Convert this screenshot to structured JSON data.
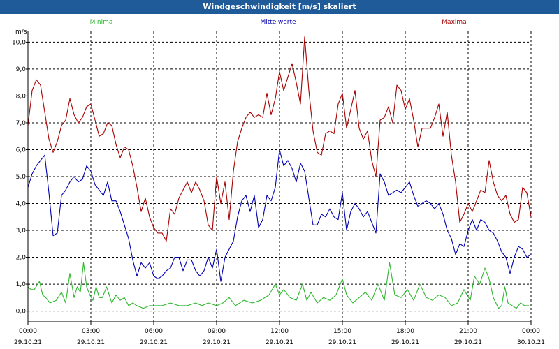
{
  "window": {
    "title": "Windgeschwindigkeit [m/s] skaliert"
  },
  "colors": {
    "minima": "#2db82d",
    "mittel": "#0000b0",
    "maxima": "#a80000",
    "titlebar": "#1f5a99"
  },
  "chart_data": {
    "type": "line",
    "ylabel": "m/s",
    "ylim": [
      -0.4,
      10.4
    ],
    "yticks": [
      "0,0",
      "1,0",
      "2,0",
      "3,0",
      "4,0",
      "5,0",
      "6,0",
      "7,0",
      "8,0",
      "9,0",
      "10,0"
    ],
    "ytick_values": [
      0,
      1,
      2,
      3,
      4,
      5,
      6,
      7,
      8,
      9,
      10
    ],
    "x_hours_range": [
      0,
      24
    ],
    "xticks": [
      {
        "time": "00:00",
        "date": "29.10.21"
      },
      {
        "time": "03:00",
        "date": "29.10.21"
      },
      {
        "time": "06:00",
        "date": "29.10.21"
      },
      {
        "time": "09:00",
        "date": "29.10.21"
      },
      {
        "time": "12:00",
        "date": "29.10.21"
      },
      {
        "time": "15:00",
        "date": "29.10.21"
      },
      {
        "time": "18:00",
        "date": "29.10.21"
      },
      {
        "time": "21:00",
        "date": "29.10.21"
      },
      {
        "time": "00:00",
        "date": "30.10.21"
      }
    ],
    "xtick_hours": [
      0,
      3,
      6,
      9,
      12,
      15,
      18,
      21,
      24
    ],
    "grid": true,
    "series": [
      {
        "name": "Minima",
        "key": "minima",
        "x": [
          0,
          0.15,
          0.3,
          0.55,
          0.7,
          0.85,
          1.05,
          1.35,
          1.6,
          1.8,
          2.0,
          2.2,
          2.35,
          2.5,
          2.65,
          2.8,
          2.95,
          3.1,
          3.25,
          3.4,
          3.55,
          3.75,
          4.0,
          4.2,
          4.4,
          4.6,
          4.8,
          5.0,
          5.2,
          5.5,
          5.8,
          6.1,
          6.4,
          6.8,
          7.2,
          7.6,
          8.0,
          8.3,
          8.6,
          9.0,
          9.3,
          9.6,
          9.9,
          10.3,
          10.7,
          11.1,
          11.5,
          11.8,
          12.0,
          12.2,
          12.5,
          12.8,
          13.1,
          13.3,
          13.5,
          13.8,
          14.1,
          14.4,
          14.7,
          15.0,
          15.2,
          15.5,
          15.8,
          16.1,
          16.4,
          16.7,
          17.0,
          17.25,
          17.5,
          17.8,
          18.1,
          18.4,
          18.7,
          19.0,
          19.3,
          19.6,
          19.9,
          20.2,
          20.5,
          20.8,
          21.1,
          21.3,
          21.55,
          21.8,
          22.0,
          22.2,
          22.45,
          22.6,
          22.75,
          22.9,
          23.1,
          23.3,
          23.5,
          23.7,
          23.9
        ],
        "y": [
          0.9,
          0.8,
          0.8,
          1.1,
          0.6,
          0.5,
          0.3,
          0.4,
          0.7,
          0.3,
          1.4,
          0.5,
          0.9,
          0.7,
          1.8,
          0.9,
          0.6,
          0.4,
          0.9,
          0.5,
          0.5,
          0.9,
          0.3,
          0.6,
          0.4,
          0.5,
          0.2,
          0.3,
          0.2,
          0.1,
          0.2,
          0.2,
          0.2,
          0.3,
          0.2,
          0.2,
          0.3,
          0.2,
          0.3,
          0.2,
          0.3,
          0.5,
          0.2,
          0.4,
          0.3,
          0.4,
          0.6,
          1.0,
          0.6,
          0.8,
          0.5,
          0.4,
          1.0,
          0.4,
          0.7,
          0.3,
          0.5,
          0.4,
          0.6,
          1.2,
          0.6,
          0.3,
          0.5,
          0.7,
          0.4,
          1.0,
          0.4,
          1.8,
          0.6,
          0.5,
          0.8,
          0.4,
          1.0,
          0.5,
          0.4,
          0.6,
          0.5,
          0.2,
          0.3,
          0.8,
          0.4,
          1.3,
          1.0,
          1.6,
          1.2,
          0.5,
          0.1,
          0.2,
          0.9,
          0.3,
          0.2,
          0.1,
          0.3,
          0.2,
          0.2
        ]
      },
      {
        "name": "Mittelwerte",
        "key": "mittel",
        "x": [
          0,
          0.2,
          0.4,
          0.6,
          0.8,
          1.0,
          1.2,
          1.4,
          1.6,
          1.8,
          2.0,
          2.2,
          2.4,
          2.6,
          2.8,
          3.0,
          3.2,
          3.4,
          3.6,
          3.8,
          4.0,
          4.2,
          4.4,
          4.6,
          4.8,
          5.0,
          5.2,
          5.4,
          5.6,
          5.8,
          6.0,
          6.2,
          6.4,
          6.6,
          6.8,
          7.0,
          7.2,
          7.4,
          7.6,
          7.8,
          8.0,
          8.2,
          8.4,
          8.6,
          8.8,
          9.0,
          9.2,
          9.4,
          9.6,
          9.8,
          10.0,
          10.2,
          10.4,
          10.6,
          10.8,
          11.0,
          11.2,
          11.4,
          11.6,
          11.8,
          12.0,
          12.2,
          12.4,
          12.6,
          12.8,
          13.0,
          13.2,
          13.4,
          13.6,
          13.8,
          14.0,
          14.2,
          14.4,
          14.6,
          14.8,
          15.0,
          15.2,
          15.4,
          15.6,
          15.8,
          16.0,
          16.2,
          16.4,
          16.6,
          16.8,
          17.0,
          17.2,
          17.4,
          17.6,
          17.8,
          18.0,
          18.2,
          18.4,
          18.6,
          18.8,
          19.0,
          19.2,
          19.4,
          19.6,
          19.8,
          20.0,
          20.2,
          20.4,
          20.6,
          20.8,
          21.0,
          21.2,
          21.4,
          21.6,
          21.8,
          22.0,
          22.2,
          22.4,
          22.6,
          22.8,
          23.0,
          23.2,
          23.4,
          23.6,
          23.8,
          24.0
        ],
        "y": [
          4.6,
          5.1,
          5.4,
          5.6,
          5.8,
          4.4,
          2.8,
          2.9,
          4.3,
          4.5,
          4.8,
          5.0,
          4.8,
          4.9,
          5.4,
          5.2,
          4.7,
          4.5,
          4.3,
          4.8,
          4.1,
          4.1,
          3.7,
          3.2,
          2.7,
          1.9,
          1.3,
          1.8,
          1.6,
          1.8,
          1.3,
          1.2,
          1.3,
          1.5,
          1.6,
          2.0,
          2.0,
          1.5,
          1.9,
          1.9,
          1.5,
          1.3,
          1.5,
          2.0,
          1.6,
          2.3,
          1.1,
          2.0,
          2.3,
          2.6,
          3.5,
          4.1,
          4.3,
          3.7,
          4.3,
          3.1,
          3.4,
          4.3,
          4.1,
          4.6,
          6.0,
          5.4,
          5.6,
          5.3,
          4.8,
          5.5,
          5.2,
          4.2,
          3.2,
          3.2,
          3.6,
          3.5,
          3.8,
          3.5,
          3.4,
          4.4,
          3.0,
          3.7,
          4.0,
          3.8,
          3.5,
          3.7,
          3.3,
          2.9,
          5.1,
          4.8,
          4.3,
          4.4,
          4.5,
          4.4,
          4.6,
          4.8,
          4.3,
          3.9,
          4.0,
          4.1,
          4.0,
          3.8,
          4.0,
          3.6,
          3.0,
          2.7,
          2.1,
          2.5,
          2.4,
          3.0,
          3.4,
          3.0,
          3.4,
          3.3,
          3.0,
          2.9,
          2.6,
          2.2,
          2.0,
          1.4,
          2.0,
          2.4,
          2.3,
          2.0,
          2.1
        ]
      },
      {
        "name": "Maxima",
        "key": "maxima",
        "x": [
          0,
          0.2,
          0.4,
          0.6,
          0.8,
          1.0,
          1.2,
          1.4,
          1.6,
          1.8,
          2.0,
          2.2,
          2.4,
          2.6,
          2.8,
          3.0,
          3.2,
          3.4,
          3.6,
          3.8,
          4.0,
          4.2,
          4.4,
          4.6,
          4.8,
          5.0,
          5.2,
          5.4,
          5.6,
          5.8,
          6.0,
          6.2,
          6.4,
          6.6,
          6.8,
          7.0,
          7.2,
          7.4,
          7.6,
          7.8,
          8.0,
          8.2,
          8.4,
          8.6,
          8.8,
          9.0,
          9.2,
          9.4,
          9.6,
          9.8,
          10.0,
          10.2,
          10.4,
          10.6,
          10.8,
          11.0,
          11.2,
          11.4,
          11.6,
          11.8,
          12.0,
          12.2,
          12.4,
          12.6,
          12.8,
          13.0,
          13.2,
          13.4,
          13.6,
          13.8,
          14.0,
          14.2,
          14.4,
          14.6,
          14.8,
          15.0,
          15.2,
          15.4,
          15.6,
          15.8,
          16.0,
          16.2,
          16.4,
          16.6,
          16.8,
          17.0,
          17.2,
          17.4,
          17.6,
          17.8,
          18.0,
          18.2,
          18.4,
          18.6,
          18.8,
          19.0,
          19.2,
          19.4,
          19.6,
          19.8,
          20.0,
          20.2,
          20.4,
          20.6,
          20.8,
          21.0,
          21.2,
          21.4,
          21.6,
          21.8,
          22.0,
          22.2,
          22.4,
          22.6,
          22.8,
          23.0,
          23.2,
          23.4,
          23.6,
          23.8,
          24.0
        ],
        "y": [
          6.9,
          8.2,
          8.6,
          8.4,
          7.4,
          6.4,
          5.9,
          6.3,
          6.9,
          7.1,
          7.9,
          7.3,
          7.0,
          7.2,
          7.6,
          7.7,
          7.1,
          6.5,
          6.6,
          7.0,
          6.9,
          6.2,
          5.7,
          6.1,
          6.0,
          5.4,
          4.6,
          3.7,
          4.2,
          3.5,
          3.1,
          2.9,
          2.9,
          2.6,
          3.8,
          3.6,
          4.2,
          4.5,
          4.8,
          4.4,
          4.8,
          4.5,
          4.1,
          3.2,
          3.0,
          5.0,
          4.0,
          4.8,
          3.4,
          5.2,
          6.3,
          6.8,
          7.2,
          7.4,
          7.2,
          7.3,
          7.2,
          8.1,
          7.3,
          7.9,
          8.9,
          8.2,
          8.7,
          9.2,
          8.5,
          7.7,
          10.2,
          8.2,
          6.7,
          5.9,
          5.8,
          6.6,
          6.7,
          6.6,
          7.7,
          8.1,
          6.8,
          7.5,
          8.2,
          6.8,
          6.4,
          6.7,
          5.6,
          5.0,
          7.1,
          7.2,
          7.6,
          7.0,
          8.4,
          8.2,
          7.5,
          7.9,
          7.1,
          6.1,
          6.8,
          6.8,
          6.8,
          7.2,
          7.7,
          6.5,
          7.4,
          5.8,
          4.8,
          3.3,
          3.6,
          4.0,
          3.7,
          4.1,
          4.5,
          4.4,
          5.6,
          4.8,
          4.3,
          4.1,
          4.3,
          3.6,
          3.3,
          3.4,
          4.6,
          4.4,
          3.5
        ]
      }
    ]
  }
}
